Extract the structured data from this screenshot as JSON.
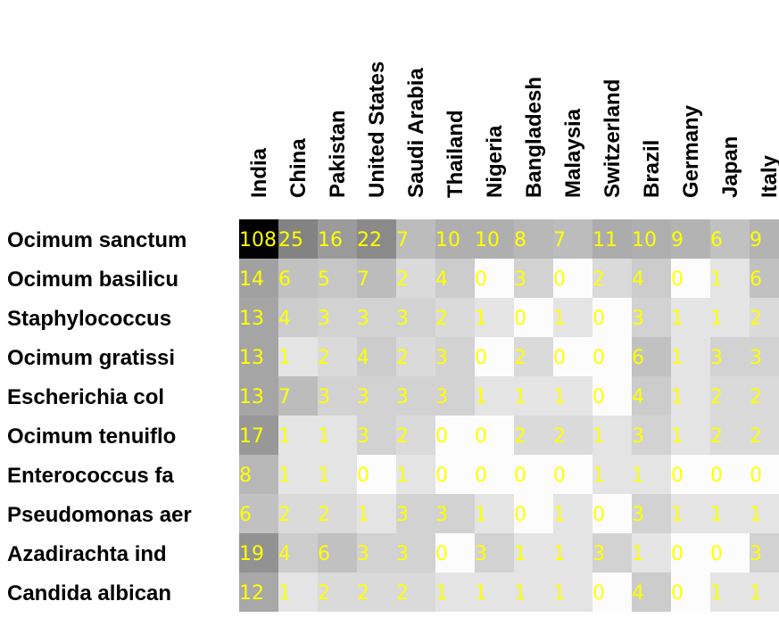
{
  "chart_data": {
    "type": "heatmap",
    "columns": [
      "India",
      "China",
      "Pakistan",
      "United States",
      "Saudi Arabia",
      "Thailand",
      "Nigeria",
      "Bangladesh",
      "Malaysia",
      "Switzerland",
      "Brazil",
      "Germany",
      "Japan",
      "Italy"
    ],
    "rows": [
      "Ocimum sanctum",
      "Ocimum basilicu",
      "Staphylococcus",
      "Ocimum gratissi",
      "Escherichia col",
      "Ocimum tenuiflo",
      "Enterococcus fa",
      "Pseudomonas aer",
      "Azadirachta ind",
      "Candida albican"
    ],
    "values": [
      [
        108,
        25,
        16,
        22,
        7,
        10,
        10,
        8,
        7,
        11,
        10,
        9,
        6,
        9
      ],
      [
        14,
        6,
        5,
        7,
        2,
        4,
        0,
        3,
        0,
        2,
        4,
        0,
        1,
        6
      ],
      [
        13,
        4,
        3,
        3,
        3,
        2,
        1,
        0,
        1,
        0,
        3,
        1,
        1,
        2
      ],
      [
        13,
        1,
        2,
        4,
        2,
        3,
        0,
        2,
        0,
        0,
        6,
        1,
        3,
        3
      ],
      [
        13,
        7,
        3,
        3,
        3,
        3,
        1,
        1,
        1,
        0,
        4,
        1,
        2,
        2
      ],
      [
        17,
        1,
        1,
        3,
        2,
        0,
        0,
        2,
        2,
        1,
        3,
        1,
        2,
        2
      ],
      [
        8,
        1,
        1,
        0,
        1,
        0,
        0,
        0,
        0,
        1,
        1,
        0,
        0,
        0
      ],
      [
        6,
        2,
        2,
        1,
        3,
        3,
        1,
        0,
        1,
        0,
        3,
        1,
        1,
        1
      ],
      [
        19,
        4,
        6,
        3,
        3,
        0,
        3,
        1,
        1,
        3,
        1,
        0,
        0,
        3
      ],
      [
        12,
        1,
        2,
        2,
        2,
        1,
        1,
        1,
        1,
        0,
        4,
        0,
        1,
        1
      ]
    ],
    "colors": {
      "low": "#ffffff",
      "high": "#000000",
      "value_text": "#ffff00",
      "label_text": "#000000"
    }
  }
}
